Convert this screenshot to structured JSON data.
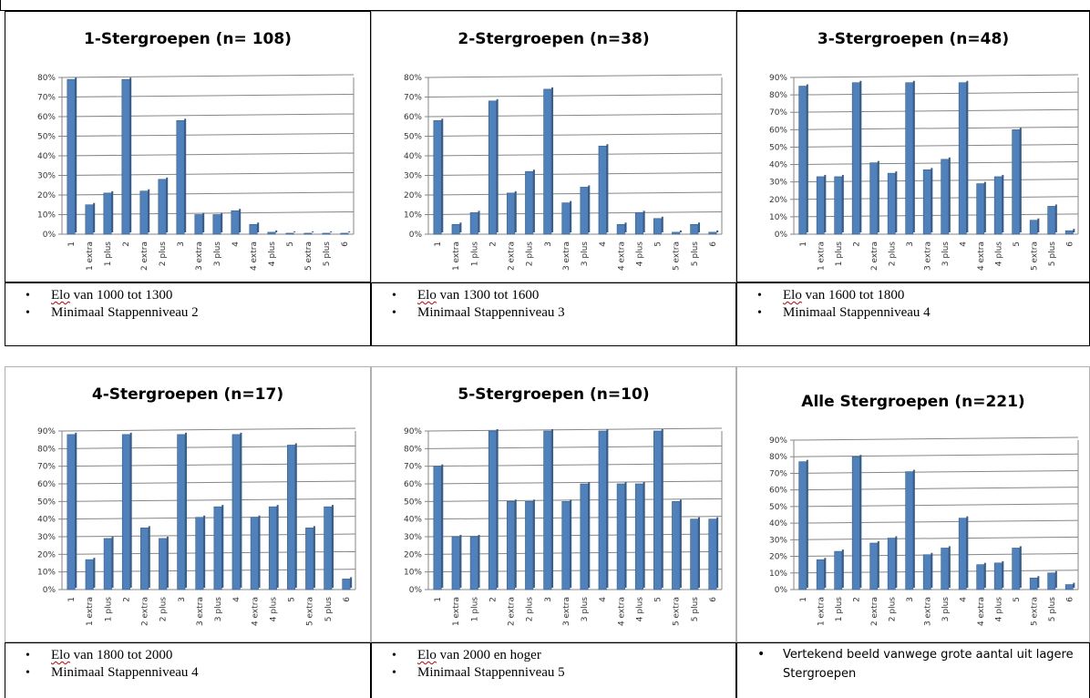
{
  "categories": [
    "1",
    "1 extra",
    "1 plus",
    "2",
    "2 extra",
    "2 plus",
    "3",
    "3 extra",
    "3 plus",
    "4",
    "4 extra",
    "4 plus",
    "5",
    "5 extra",
    "5 plus",
    "6"
  ],
  "colors": {
    "bar": "#4f81bd",
    "bar_dark": "#385d8a",
    "grid": "#868686"
  },
  "chart_data": [
    {
      "type": "bar",
      "title": "1-Stergroepen (n= 108)",
      "ylim": [
        0,
        80
      ],
      "tick_step": 10,
      "grid": true,
      "values": [
        79,
        15,
        21,
        79,
        22,
        28,
        58,
        10,
        10,
        12,
        5,
        1,
        0.5,
        0.5,
        0.5,
        0.5
      ]
    },
    {
      "type": "bar",
      "title": "2-Stergroepen (n=38)",
      "ylim": [
        0,
        80
      ],
      "tick_step": 10,
      "grid": true,
      "values": [
        58,
        5,
        11,
        68,
        21,
        32,
        74,
        16,
        24,
        45,
        5,
        11,
        8,
        1,
        5,
        1
      ]
    },
    {
      "type": "bar",
      "title": "3-Stergroepen (n=48)",
      "ylim": [
        0,
        90
      ],
      "tick_step": 10,
      "grid": true,
      "values": [
        85,
        33,
        33,
        87,
        41,
        35,
        87,
        37,
        43,
        87,
        29,
        33,
        60,
        8,
        16,
        2
      ]
    },
    {
      "type": "bar",
      "title": "4-Stergroepen (n=17)",
      "ylim": [
        0,
        90
      ],
      "tick_step": 10,
      "grid": true,
      "values": [
        88,
        17,
        29,
        88,
        35,
        29,
        88,
        41,
        47,
        88,
        41,
        47,
        82,
        35,
        47,
        6
      ]
    },
    {
      "type": "bar",
      "title": "5-Stergroepen (n=10)",
      "ylim": [
        0,
        90
      ],
      "tick_step": 10,
      "grid": true,
      "values": [
        70,
        30,
        30,
        90,
        50,
        50,
        90,
        50,
        60,
        90,
        60,
        60,
        90,
        50,
        40,
        40
      ]
    },
    {
      "type": "bar",
      "title": "Alle Stergroepen (n=221)",
      "ylim": [
        0,
        90
      ],
      "tick_step": 10,
      "grid": true,
      "values": [
        77,
        18,
        23,
        80,
        28,
        31,
        71,
        21,
        25,
        43,
        15,
        16,
        25,
        7,
        10,
        3
      ]
    }
  ],
  "notes": [
    {
      "lines": [
        {
          "elo": "Elo",
          "rest": " van 1000 tot 1300"
        },
        {
          "elo": "",
          "rest": "Minimaal Stappenniveau 2"
        }
      ]
    },
    {
      "lines": [
        {
          "elo": "Elo",
          "rest": " van 1300 tot 1600"
        },
        {
          "elo": "",
          "rest": "Minimaal Stappenniveau 3"
        }
      ]
    },
    {
      "lines": [
        {
          "elo": "Elo",
          "rest": " van 1600 tot 1800"
        },
        {
          "elo": "",
          "rest": "Minimaal Stappenniveau 4"
        }
      ]
    },
    {
      "lines": [
        {
          "elo": "Elo",
          "rest": " van 1800 tot 2000"
        },
        {
          "elo": "",
          "rest": "Minimaal Stappenniveau 4"
        }
      ]
    },
    {
      "lines": [
        {
          "elo": "Elo",
          "rest": " van 2000 en hoger"
        },
        {
          "elo": "",
          "rest": "Minimaal Stappenniveau 5"
        }
      ]
    },
    {
      "lines": [
        {
          "elo": "",
          "rest": "Vertekend beeld vanwege grote aantal uit lagere Stergroepen"
        }
      ]
    }
  ]
}
